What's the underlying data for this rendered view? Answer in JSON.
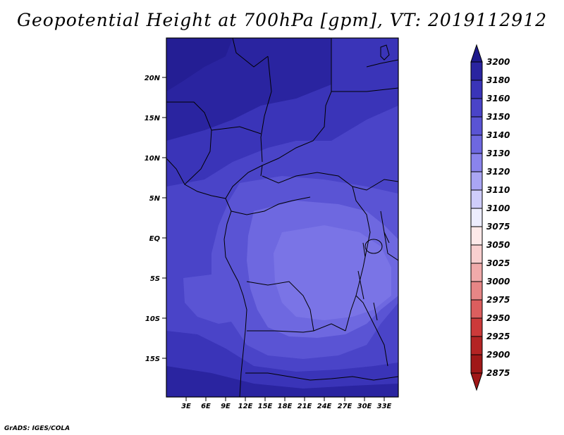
{
  "title": "Geopotential Height at 700hPa [gpm], VT: 2019112912",
  "credit": "GrADS: IGES/COLA",
  "map": {
    "lat_labels": [
      "20N",
      "15N",
      "10N",
      "5N",
      "EQ",
      "5S",
      "10S",
      "15S"
    ],
    "lon_labels": [
      "3E",
      "6E",
      "9E",
      "12E",
      "15E",
      "18E",
      "21E",
      "24E",
      "27E",
      "30E",
      "33E"
    ]
  },
  "legend": {
    "levels": [
      "3200",
      "3180",
      "3160",
      "3150",
      "3140",
      "3130",
      "3120",
      "3110",
      "3100",
      "3075",
      "3050",
      "3025",
      "3000",
      "2975",
      "2950",
      "2925",
      "2900",
      "2875"
    ],
    "colors": [
      "#1e1a8c",
      "#2a24a0",
      "#3a34b8",
      "#4a44c8",
      "#5a54d4",
      "#6e68e0",
      "#8a84ec",
      "#aaa6f4",
      "#cfcdfa",
      "#ededfe",
      "#fde9e9",
      "#f8cfcf",
      "#f0aaaa",
      "#e68686",
      "#dc5e5e",
      "#cc3a3a",
      "#b42424",
      "#a01818"
    ]
  }
}
